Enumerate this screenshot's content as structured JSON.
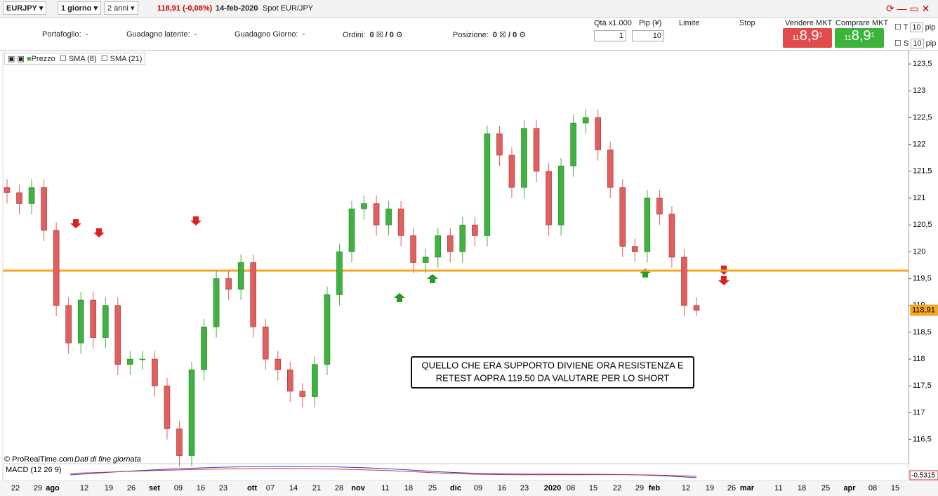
{
  "toolbar": {
    "symbol": "EURJPY",
    "period": "1 giorno",
    "range": "2 anni",
    "quote": "118,91 (-0,08%)",
    "date": "14-feb-2020",
    "instrument": "Spot EUR/JPY"
  },
  "account": {
    "portfolio_label": "Portafoglio:",
    "portfolio_value": "-",
    "latent_label": "Guadagno latente:",
    "latent_value": "-",
    "day_label": "Guadagno Giorno:",
    "day_value": "-",
    "orders_label": "Ordini:",
    "orders_value": "0",
    "orders_sep": "/ 0",
    "position_label": "Posizione:",
    "position_value": "0",
    "position_sep": "/ 0"
  },
  "order_panel": {
    "qty_label": "Qtà x1.000",
    "qty_value": "1",
    "pip_label": "Pip (¥)",
    "pip_value": "10",
    "limit_label": "Limite",
    "stop_label": "Stop",
    "sell_label": "Vendere MKT",
    "buy_label": "Comprare MKT",
    "sell_big": "11",
    "sell_price": "8,9",
    "sell_small": "1",
    "buy_big": "11",
    "buy_price": "8,9",
    "buy_small": "1",
    "t_label": "T",
    "t_value": "10",
    "t_unit": "pip",
    "s_label": "S",
    "s_value": "10",
    "s_unit": "pip"
  },
  "legend": {
    "price": "Prezzo",
    "sma8": "SMA (8)",
    "sma21": "SMA (21)"
  },
  "footer": {
    "source": "© ProRealTime.com",
    "note": "Dati di fine giornata",
    "macd": "MACD (12 26 9)",
    "macd_value": "-0,5315"
  },
  "chart_data": {
    "type": "candlestick",
    "annotation": [
      "QUELLO CHE ERA SUPPORTO DIVIENE ORA RESISTENZA E",
      "RETEST AOPRA 119.50 DA VALUTARE PER LO SHORT"
    ],
    "open": [
      121.2,
      121.1,
      120.9,
      121.2,
      120.4,
      119.0,
      118.3,
      119.1,
      118.4,
      119.0,
      117.9,
      118.0,
      118.0,
      117.5,
      116.7,
      116.2,
      117.8,
      118.6,
      119.5,
      119.3,
      119.8,
      118.6,
      118.0,
      117.8,
      117.4,
      117.3,
      117.9,
      119.2,
      120.0,
      120.8,
      120.9,
      120.5,
      120.8,
      120.3,
      119.8,
      119.9,
      120.3,
      120.0,
      120.5,
      120.3,
      122.2,
      121.8,
      121.2,
      122.3,
      121.5,
      120.5,
      121.6,
      122.4,
      122.5,
      121.9,
      121.2,
      120.1,
      120.0,
      121.0,
      120.7,
      119.9,
      119.0
    ],
    "high": [
      121.35,
      121.25,
      121.35,
      121.35,
      120.55,
      119.15,
      119.25,
      119.25,
      119.15,
      119.15,
      118.15,
      118.15,
      118.15,
      117.65,
      116.85,
      117.95,
      118.75,
      119.65,
      119.65,
      119.95,
      119.95,
      118.75,
      118.15,
      117.95,
      117.55,
      118.05,
      119.35,
      120.15,
      120.95,
      121.05,
      121.05,
      120.95,
      120.95,
      120.45,
      120.05,
      120.45,
      120.45,
      120.65,
      120.65,
      122.35,
      122.35,
      121.95,
      122.45,
      122.45,
      121.65,
      121.75,
      122.55,
      122.65,
      122.65,
      122.05,
      121.35,
      120.25,
      121.15,
      121.15,
      120.85,
      120.05,
      119.15
    ],
    "low": [
      120.9,
      120.7,
      120.7,
      120.2,
      118.8,
      118.1,
      118.1,
      118.2,
      118.2,
      117.7,
      117.7,
      117.8,
      117.3,
      116.5,
      116.0,
      116.0,
      117.6,
      118.4,
      119.1,
      119.1,
      118.4,
      117.8,
      117.6,
      117.2,
      117.1,
      117.1,
      117.7,
      119.0,
      119.8,
      120.6,
      120.3,
      120.3,
      120.1,
      119.6,
      119.6,
      119.7,
      119.8,
      119.8,
      120.1,
      120.1,
      121.6,
      121.0,
      121.0,
      121.3,
      120.3,
      120.3,
      121.4,
      122.2,
      121.7,
      121.0,
      119.9,
      119.8,
      119.8,
      120.5,
      119.7,
      118.8,
      118.8
    ],
    "close": [
      121.1,
      120.9,
      121.2,
      120.4,
      119.0,
      118.3,
      119.1,
      118.4,
      119.0,
      117.9,
      118.0,
      118.0,
      117.5,
      116.7,
      116.2,
      117.8,
      118.6,
      119.5,
      119.3,
      119.8,
      118.6,
      118.0,
      117.8,
      117.4,
      117.3,
      117.9,
      119.2,
      120.0,
      120.8,
      120.9,
      120.5,
      120.8,
      120.3,
      119.8,
      119.9,
      120.3,
      120.0,
      120.5,
      120.3,
      122.2,
      121.8,
      121.2,
      122.3,
      121.5,
      120.5,
      121.6,
      122.4,
      122.5,
      121.9,
      121.2,
      120.1,
      120.0,
      121.0,
      120.7,
      119.9,
      119.0,
      118.91
    ],
    "last": 118.91,
    "last_label": "118,91",
    "hline": 119.65,
    "hline_color": "#f7a823",
    "up_color": "#3fb23f",
    "down_color": "#e06060",
    "ylim": [
      116.05,
      123.75
    ],
    "yticks": [
      {
        "value": 123.5,
        "label": "123,5"
      },
      123,
      {
        "value": 122.5,
        "label": "122,5"
      },
      122,
      {
        "value": 121.5,
        "label": "121,5"
      },
      121,
      {
        "value": 120.5,
        "label": "120,5"
      },
      120,
      {
        "value": 119.5,
        "label": "119,5"
      },
      119,
      {
        "value": 118.5,
        "label": "118,5"
      },
      118,
      {
        "value": 117.5,
        "label": "117,5"
      },
      117,
      {
        "value": 116.5,
        "label": "116,5"
      }
    ],
    "x_labels": [
      "22",
      "29",
      "ago",
      "12",
      "19",
      "26",
      "set",
      "09",
      "16",
      "23",
      "ott",
      "07",
      "14",
      "21",
      "28",
      "nov",
      "11",
      "18",
      "25",
      "dic",
      "09",
      "16",
      "23",
      "2020",
      "08",
      "15",
      "22",
      "29",
      "feb",
      "12",
      "19",
      "26",
      "mar",
      "11",
      "18",
      "25",
      "apr",
      "08",
      "15"
    ]
  }
}
